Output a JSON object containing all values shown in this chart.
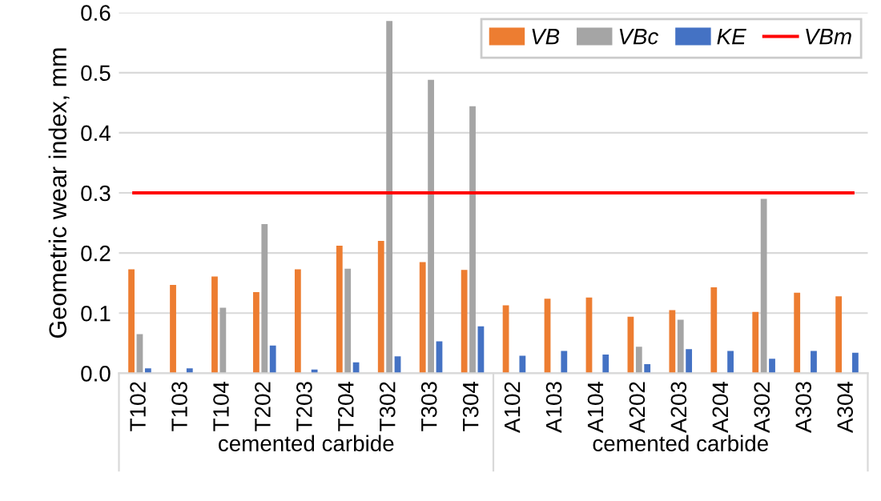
{
  "chart_data": {
    "type": "bar",
    "ylabel": "Geometric wear index, mm",
    "categories": [
      "T102",
      "T103",
      "T104",
      "T202",
      "T203",
      "T204",
      "T302",
      "T303",
      "T304",
      "A102",
      "A103",
      "A104",
      "A202",
      "A203",
      "A204",
      "A302",
      "A303",
      "A304"
    ],
    "series": [
      {
        "name": "VB",
        "color": "#ed7d31",
        "values": [
          0.173,
          0.147,
          0.161,
          0.135,
          0.173,
          0.212,
          0.22,
          0.185,
          0.172,
          0.113,
          0.124,
          0.126,
          0.094,
          0.105,
          0.143,
          0.102,
          0.134,
          0.128
        ]
      },
      {
        "name": "VBc",
        "color": "#a5a5a5",
        "values": [
          0.065,
          0,
          0.109,
          0.248,
          0,
          0.174,
          0.586,
          0.488,
          0.444,
          0,
          0,
          0,
          0.044,
          0.089,
          0,
          0.29,
          0,
          0
        ]
      },
      {
        "name": "KE",
        "color": "#4472c4",
        "values": [
          0.008,
          0.008,
          0,
          0.046,
          0.006,
          0.018,
          0.028,
          0.053,
          0.078,
          0.029,
          0.037,
          0.031,
          0.015,
          0.04,
          0.037,
          0.024,
          0.037,
          0.034
        ]
      }
    ],
    "ref_lines": [
      {
        "axis": "y",
        "value": 0.3,
        "label": "VBm",
        "color": "#ff0000"
      }
    ],
    "ylim": [
      0,
      0.6
    ],
    "yticks": [
      {
        "value": 0,
        "label": "0.0"
      },
      0.1,
      0.2,
      0.3,
      0.4,
      0.5,
      0.6
    ],
    "grid": "y",
    "legend": "top right",
    "annotations": [
      "cemented carbide",
      "cemented carbide"
    ]
  }
}
